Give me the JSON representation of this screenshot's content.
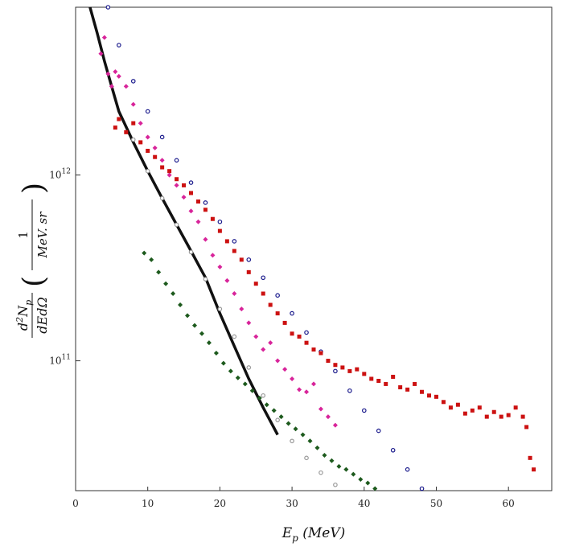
{
  "chart_data": {
    "type": "scatter",
    "title": "",
    "xlabel": "E_p (MeV)",
    "ylabel": "d²N_p / dE dΩ (1 / MeV.sr)",
    "xlim": [
      0,
      66
    ],
    "ylim_log": [
      20000000000.0,
      8000000000000.0
    ],
    "y_scale": "log",
    "grid": false,
    "x_ticks": [
      "0",
      "10",
      "20",
      "30",
      "40",
      "50",
      "60"
    ],
    "y_ticks": [
      {
        "value": 1000000000000.0,
        "base": "10",
        "exp": "12"
      },
      {
        "value": 100000000000.0,
        "base": "10",
        "exp": "11"
      }
    ],
    "colors": {
      "black": "#111111",
      "blue": "#1a1a8c",
      "gray": "#9a9a9a",
      "magenta": "#d8249a",
      "red": "#cc1111",
      "green": "#1d5a1d"
    },
    "series": [
      {
        "color": "#111111",
        "marker": "line",
        "x": [
          2,
          3,
          4,
          5,
          6,
          8,
          10,
          12,
          14,
          16,
          18,
          20,
          22,
          24,
          26,
          28
        ],
        "y": [
          8000000000000.0,
          5800000000000.0,
          4100000000000.0,
          3000000000000.0,
          2200000000000.0,
          1500000000000.0,
          1050000000000.0,
          750000000000.0,
          540000000000.0,
          390000000000.0,
          280000000000.0,
          180000000000.0,
          120000000000.0,
          80000000000.0,
          56000000000.0,
          40000000000.0
        ]
      },
      {
        "color": "#9a9a9a",
        "marker": "ring",
        "x": [
          8,
          10,
          12,
          14,
          16,
          18,
          20,
          22,
          24,
          26,
          28,
          30,
          32,
          34,
          36
        ],
        "y": [
          1550000000000.0,
          1050000000000.0,
          750000000000.0,
          540000000000.0,
          385000000000.0,
          275000000000.0,
          190000000000.0,
          135000000000.0,
          92000000000.0,
          65000000000.0,
          48000000000.0,
          37000000000.0,
          30000000000.0,
          25000000000.0,
          21500000000.0
        ]
      },
      {
        "color": "#1a1a8c",
        "marker": "ring",
        "x": [
          4.5,
          6,
          8,
          10,
          12,
          14,
          16,
          18,
          20,
          22,
          24,
          26,
          28,
          30,
          32,
          34,
          36,
          38,
          40,
          42,
          44,
          46,
          48
        ],
        "y": [
          8000000000000.0,
          5000000000000.0,
          3200000000000.0,
          2200000000000.0,
          1600000000000.0,
          1200000000000.0,
          910000000000.0,
          710000000000.0,
          560000000000.0,
          440000000000.0,
          350000000000.0,
          280000000000.0,
          225000000000.0,
          180000000000.0,
          142000000000.0,
          112000000000.0,
          88000000000.0,
          69000000000.0,
          54000000000.0,
          42000000000.0,
          33000000000.0,
          26000000000.0,
          20500000000.0
        ]
      },
      {
        "color": "#d8249a",
        "marker": "diamond",
        "x": [
          3.5,
          4,
          4.5,
          5,
          5.5,
          6,
          7,
          8,
          9,
          10,
          11,
          12,
          13,
          14,
          15,
          16,
          17,
          18,
          19,
          20,
          21,
          22,
          23,
          24,
          25,
          26,
          27,
          28,
          29,
          30,
          31,
          32,
          33,
          34,
          35,
          36
        ],
        "y": [
          4500000000000.0,
          5500000000000.0,
          3500000000000.0,
          3000000000000.0,
          3600000000000.0,
          3400000000000.0,
          3000000000000.0,
          2400000000000.0,
          1900000000000.0,
          1600000000000.0,
          1400000000000.0,
          1200000000000.0,
          1000000000000.0,
          880000000000.0,
          760000000000.0,
          640000000000.0,
          560000000000.0,
          450000000000.0,
          370000000000.0,
          320000000000.0,
          270000000000.0,
          230000000000.0,
          190000000000.0,
          160000000000.0,
          135000000000.0,
          115000000000.0,
          125000000000.0,
          100000000000.0,
          90000000000.0,
          80000000000.0,
          70000000000.0,
          68000000000.0,
          75000000000.0,
          55000000000.0,
          50000000000.0,
          45000000000.0
        ]
      },
      {
        "color": "#cc1111",
        "marker": "square",
        "x": [
          5.5,
          6,
          7,
          8,
          9,
          10,
          11,
          12,
          13,
          14,
          15,
          16,
          17,
          18,
          19,
          20,
          21,
          22,
          23,
          24,
          25,
          26,
          27,
          28,
          29,
          30,
          31,
          32,
          33,
          34,
          35,
          36,
          37,
          38,
          39,
          40,
          41,
          42,
          43,
          44,
          45,
          46,
          47,
          48,
          49,
          50,
          51,
          52,
          53,
          54,
          55,
          56,
          57,
          58,
          59,
          60,
          61,
          62,
          62.5,
          63,
          63.5
        ],
        "y": [
          1800000000000.0,
          2000000000000.0,
          1700000000000.0,
          1900000000000.0,
          1500000000000.0,
          1350000000000.0,
          1250000000000.0,
          1100000000000.0,
          1050000000000.0,
          950000000000.0,
          880000000000.0,
          800000000000.0,
          720000000000.0,
          650000000000.0,
          580000000000.0,
          500000000000.0,
          440000000000.0,
          390000000000.0,
          350000000000.0,
          300000000000.0,
          260000000000.0,
          230000000000.0,
          200000000000.0,
          180000000000.0,
          160000000000.0,
          140000000000.0,
          135000000000.0,
          125000000000.0,
          115000000000.0,
          110000000000.0,
          100000000000.0,
          95000000000.0,
          92000000000.0,
          88000000000.0,
          90000000000.0,
          85000000000.0,
          80000000000.0,
          78000000000.0,
          75000000000.0,
          82000000000.0,
          72000000000.0,
          70000000000.0,
          75000000000.0,
          68000000000.0,
          65000000000.0,
          64000000000.0,
          60000000000.0,
          56000000000.0,
          58000000000.0,
          52000000000.0,
          54000000000.0,
          56000000000.0,
          50000000000.0,
          53000000000.0,
          50000000000.0,
          51000000000.0,
          56000000000.0,
          50000000000.0,
          44000000000.0,
          30000000000.0,
          26000000000.0
        ]
      },
      {
        "color": "#1d5a1d",
        "marker": "diamond",
        "x": [
          9.5,
          10.5,
          11.5,
          12.5,
          13.5,
          14.5,
          15.5,
          16.5,
          17.5,
          18.5,
          19.5,
          20.5,
          21.5,
          22.5,
          23.5,
          24.5,
          25.5,
          26.5,
          27.5,
          28.5,
          29.5,
          30.5,
          31.5,
          32.5,
          33.5,
          34.5,
          35.5,
          36.5,
          37.5,
          38.5,
          39.5,
          40.5,
          41.5
        ],
        "y": [
          380000000000.0,
          350000000000.0,
          300000000000.0,
          260000000000.0,
          230000000000.0,
          200000000000.0,
          175000000000.0,
          155000000000.0,
          140000000000.0,
          125000000000.0,
          110000000000.0,
          97000000000.0,
          88000000000.0,
          81000000000.0,
          75000000000.0,
          69000000000.0,
          63000000000.0,
          58000000000.0,
          54000000000.0,
          50000000000.0,
          46000000000.0,
          43000000000.0,
          40000000000.0,
          37000000000.0,
          34000000000.0,
          31000000000.0,
          29000000000.0,
          27000000000.0,
          26000000000.0,
          24500000000.0,
          23000000000.0,
          22000000000.0,
          20500000000.0
        ]
      }
    ]
  }
}
